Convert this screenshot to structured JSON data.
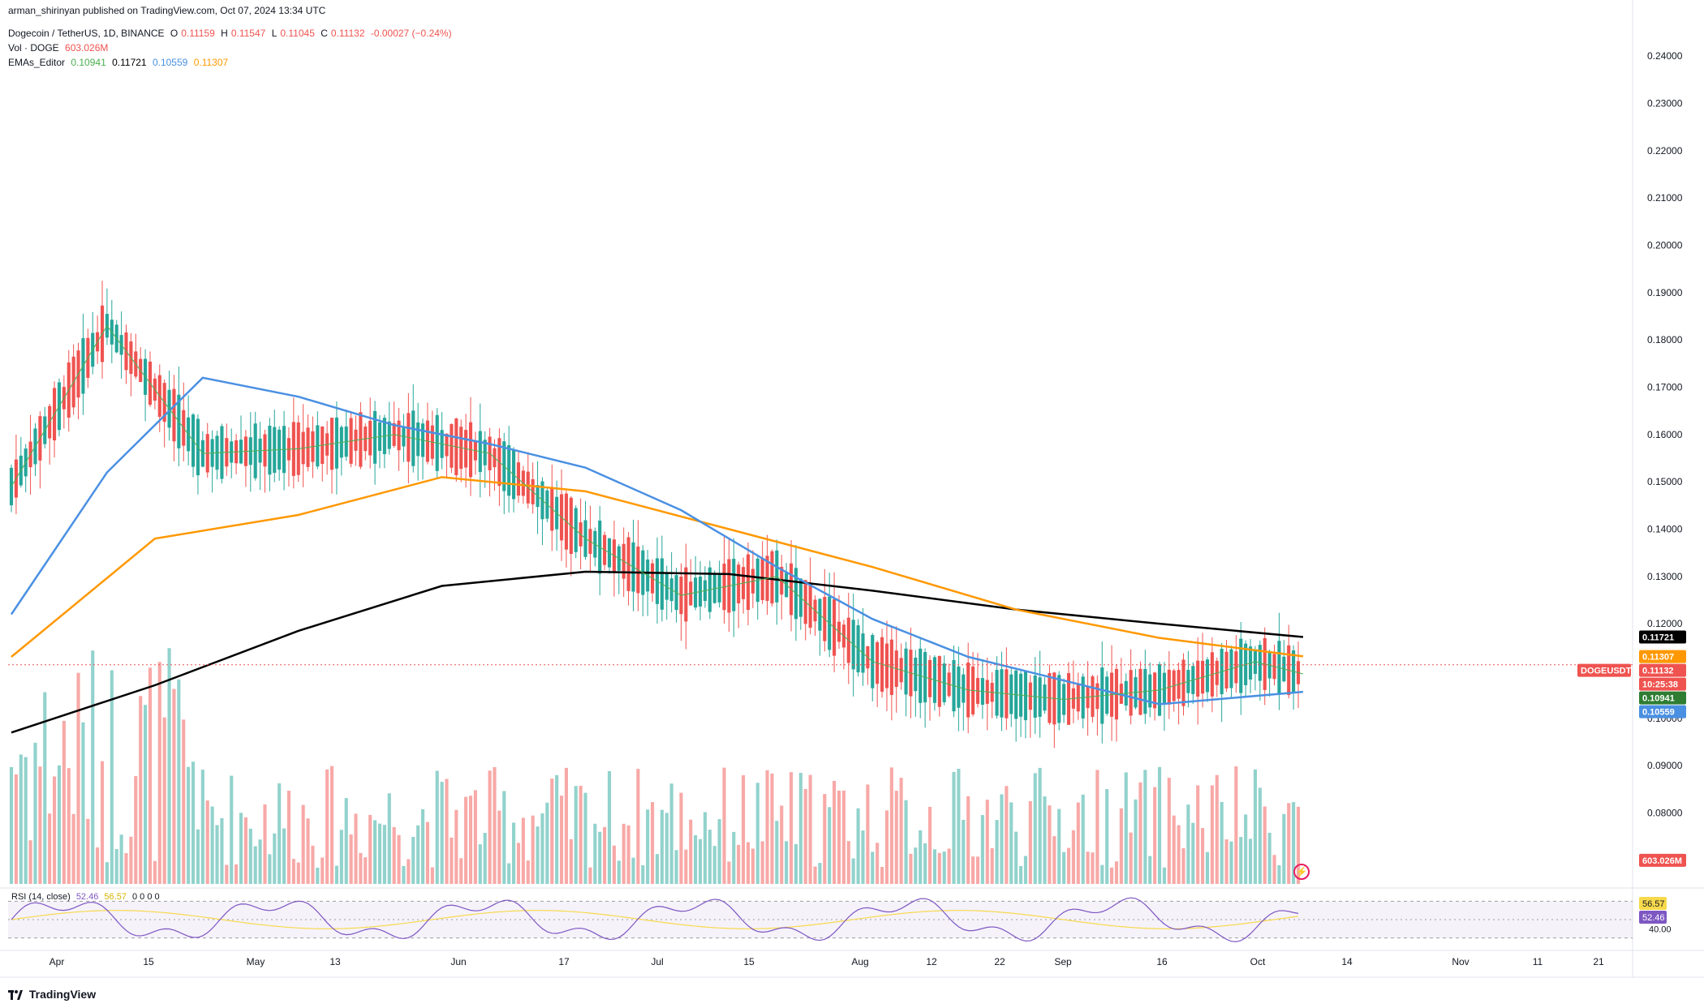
{
  "header": {
    "publisher": "arman_shirinyan published on TradingView.com, Oct 07, 2024 13:34 UTC",
    "symbol": "Dogecoin / TetherUS, 1D, BINANCE",
    "ohlc": {
      "o_label": "O",
      "o": "0.11159",
      "h_label": "H",
      "h": "0.11547",
      "l_label": "L",
      "l": "0.11045",
      "c_label": "C",
      "c": "0.11132",
      "chg": "-0.00027 (−0.24%)"
    },
    "vol_label": "Vol · DOGE",
    "vol_value": "603.026M",
    "ema_label": "EMAs_Editor",
    "ema_values": [
      "0.10941",
      "0.11721",
      "0.10559",
      "0.11307"
    ]
  },
  "rsi_legend": {
    "label": "RSI (14, close)",
    "v1": "52.46",
    "v2": "56.57",
    "zeros": "0  0  0  0"
  },
  "footer": {
    "brand": "TradingView"
  },
  "colors": {
    "up": "#26a69a",
    "down": "#ef5350",
    "ema20": "#4caf50",
    "ema50": "#4a90e2",
    "ema100": "#ff9800",
    "ema200": "#000000",
    "rsi": "#7e57c2",
    "rsi_ma": "#f7d94c"
  },
  "chart_data": {
    "type": "candlestick",
    "title": "Dogecoin / TetherUS, 1D, BINANCE",
    "y_ticks": [
      "0.24000",
      "0.23000",
      "0.22000",
      "0.21000",
      "0.20000",
      "0.19000",
      "0.18000",
      "0.17000",
      "0.16000",
      "0.15000",
      "0.14000",
      "0.13000",
      "0.12000",
      "0.11000",
      "0.10000",
      "0.09000",
      "0.08000",
      "0.07000"
    ],
    "ylim": [
      0.065,
      0.245
    ],
    "x_ticks": [
      "Apr",
      "15",
      "May",
      "13",
      "Jun",
      "17",
      "Jul",
      "15",
      "Aug",
      "12",
      "22",
      "Sep",
      "16",
      "Oct",
      "14",
      "Nov",
      "11",
      "21"
    ],
    "price_tags": [
      {
        "label": "0.11721",
        "value": 0.11721,
        "color": "#000000"
      },
      {
        "label": "0.11307",
        "value": 0.11307,
        "color": "#ff9800"
      },
      {
        "label": "DOGEUSDT",
        "value": 0.11132,
        "color": "#ef5350"
      },
      {
        "label": "0.11132",
        "value": 0.11132,
        "color": "#ef5350"
      },
      {
        "label": "10:25:38",
        "value": 0.1099,
        "color": "#ef5350"
      },
      {
        "label": "0.10941",
        "value": 0.10941,
        "color": "#2e7d32"
      },
      {
        "label": "0.10559",
        "value": 0.10559,
        "color": "#4a90e2"
      },
      {
        "label": "603.026M",
        "value": 0.07,
        "color": "#ef5350"
      }
    ],
    "rsi": {
      "ticks": [
        "40.00"
      ],
      "upper": 70,
      "lower": 30,
      "tags": [
        {
          "label": "56.57",
          "value": 56.57,
          "color": "#f7d94c"
        },
        {
          "label": "52.46",
          "value": 52.46,
          "color": "#7e57c2"
        }
      ]
    },
    "ema200_points": [
      [
        0,
        0.097
      ],
      [
        30,
        0.107
      ],
      [
        60,
        0.1185
      ],
      [
        90,
        0.128
      ],
      [
        120,
        0.131
      ],
      [
        150,
        0.1305
      ],
      [
        180,
        0.127
      ],
      [
        210,
        0.123
      ],
      [
        240,
        0.12
      ],
      [
        270,
        0.1172
      ]
    ],
    "ema100_points": [
      [
        0,
        0.113
      ],
      [
        30,
        0.138
      ],
      [
        60,
        0.143
      ],
      [
        90,
        0.151
      ],
      [
        120,
        0.148
      ],
      [
        150,
        0.14
      ],
      [
        180,
        0.132
      ],
      [
        210,
        0.123
      ],
      [
        240,
        0.117
      ],
      [
        270,
        0.1131
      ]
    ],
    "ema50_points": [
      [
        0,
        0.122
      ],
      [
        20,
        0.152
      ],
      [
        40,
        0.172
      ],
      [
        60,
        0.168
      ],
      [
        80,
        0.162
      ],
      [
        100,
        0.158
      ],
      [
        120,
        0.153
      ],
      [
        140,
        0.144
      ],
      [
        160,
        0.132
      ],
      [
        180,
        0.121
      ],
      [
        200,
        0.113
      ],
      [
        220,
        0.108
      ],
      [
        240,
        0.103
      ],
      [
        270,
        0.1056
      ]
    ],
    "ema20_points": [
      [
        0,
        0.149
      ],
      [
        20,
        0.183
      ],
      [
        40,
        0.156
      ],
      [
        60,
        0.157
      ],
      [
        80,
        0.16
      ],
      [
        100,
        0.156
      ],
      [
        120,
        0.138
      ],
      [
        140,
        0.126
      ],
      [
        160,
        0.13
      ],
      [
        180,
        0.112
      ],
      [
        200,
        0.106
      ],
      [
        220,
        0.104
      ],
      [
        240,
        0.106
      ],
      [
        260,
        0.112
      ],
      [
        270,
        0.1094
      ]
    ]
  }
}
